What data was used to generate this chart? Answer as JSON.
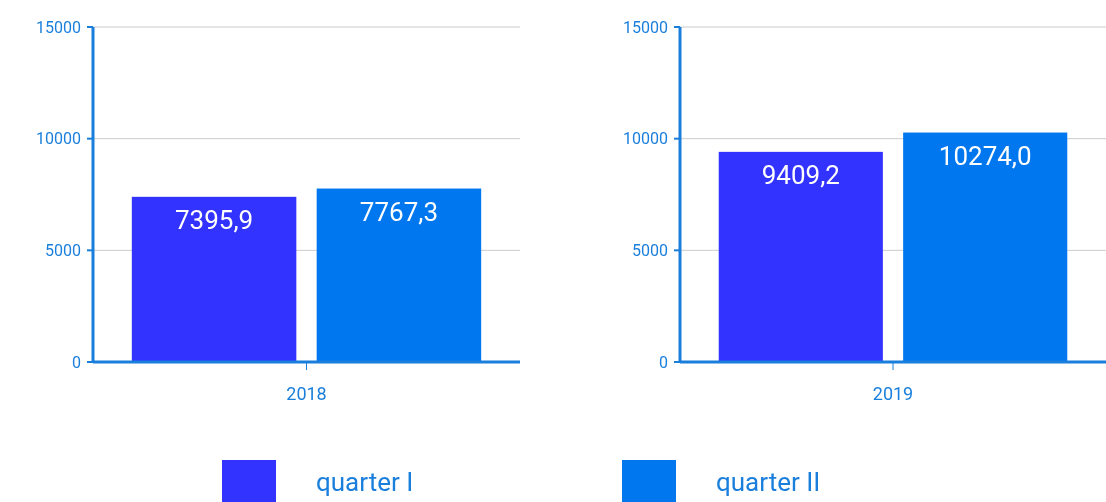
{
  "chart_data": [
    {
      "type": "bar",
      "categories": [
        "2018"
      ],
      "series": [
        {
          "name": "quarter I",
          "color": "#3333ff",
          "values": [
            7395.9
          ],
          "value_labels": [
            "7395,9"
          ]
        },
        {
          "name": "quarter II",
          "color": "#0077ee",
          "values": [
            7767.3
          ],
          "value_labels": [
            "7767,3"
          ]
        }
      ],
      "ylim": [
        0,
        15000
      ],
      "yticks": [
        0,
        5000,
        10000,
        15000
      ],
      "grid": "y",
      "legend": "bottom"
    },
    {
      "type": "bar",
      "categories": [
        "2019"
      ],
      "series": [
        {
          "color": "#3333ff",
          "values": [
            9409.2
          ],
          "value_labels": [
            "9409,2"
          ]
        },
        {
          "color": "#0077ee",
          "values": [
            10274.0
          ],
          "value_labels": [
            "10274,0"
          ]
        }
      ],
      "ylim": [
        0,
        15000
      ],
      "yticks": [
        0,
        5000,
        10000,
        15000
      ],
      "grid": "y"
    }
  ]
}
